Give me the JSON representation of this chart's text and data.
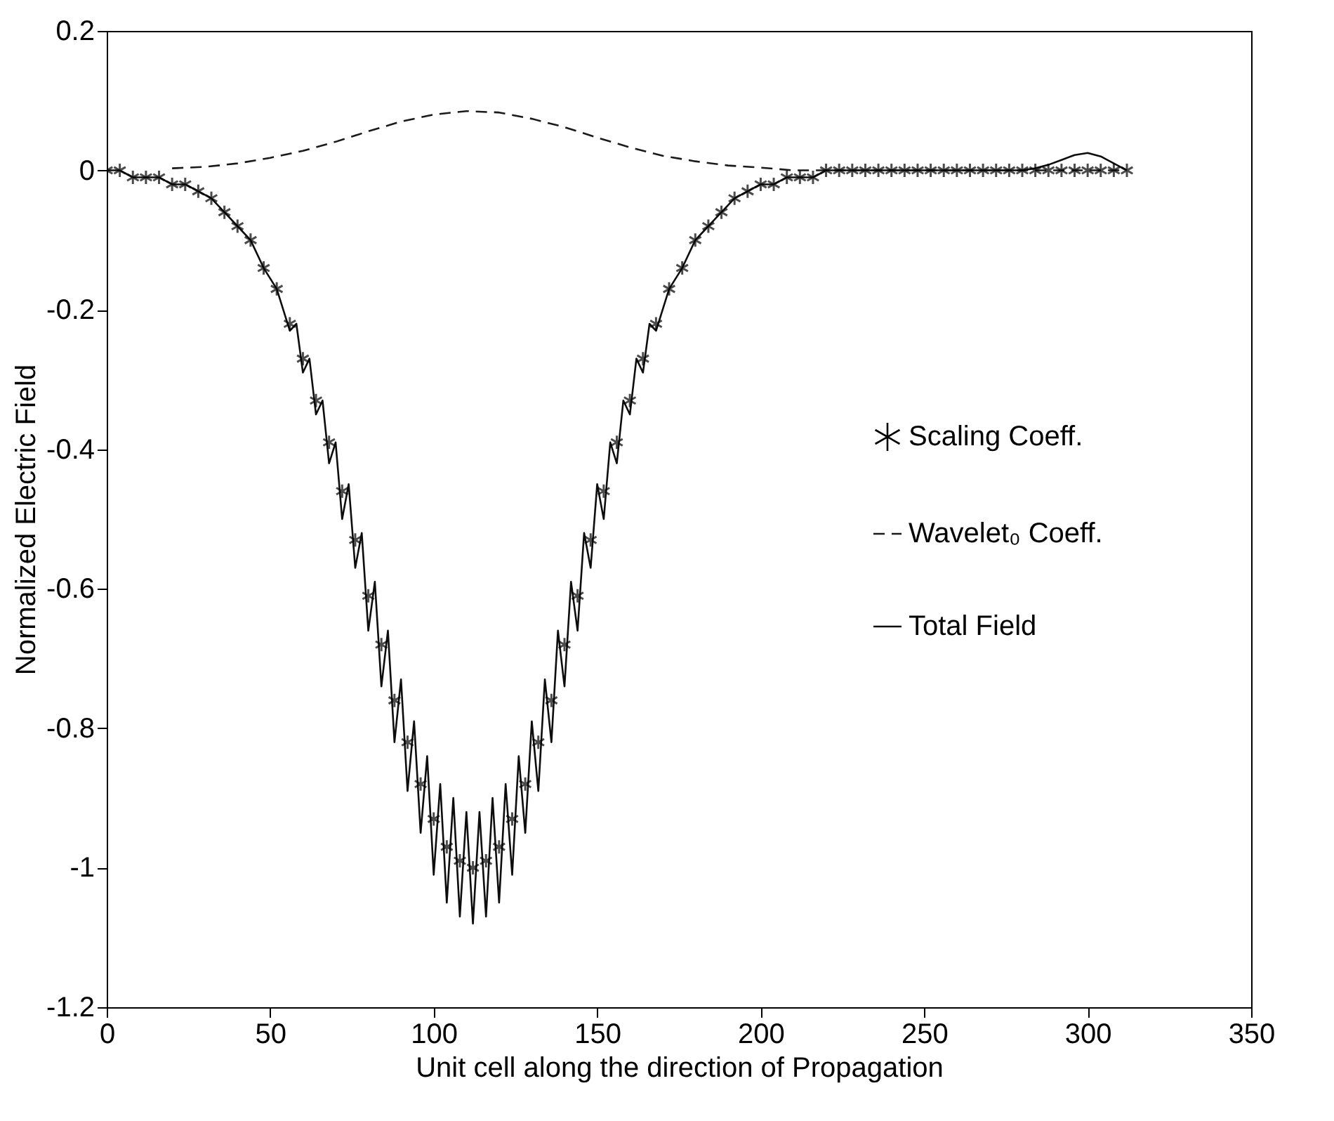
{
  "chart_data": {
    "type": "scatter",
    "xlabel": "Unit cell along the direction of Propagation",
    "ylabel": "Normalized Electric Field",
    "xlim": [
      0,
      350
    ],
    "ylim": [
      -1.2,
      0.2
    ],
    "xticks": [
      0,
      50,
      100,
      150,
      200,
      250,
      300,
      350
    ],
    "yticks": [
      -1.2,
      {
        "value": -1,
        "label": "-1"
      },
      -0.8,
      -0.6,
      -0.4,
      -0.2,
      {
        "value": 0,
        "label": "0"
      },
      0.2
    ],
    "grid": false,
    "legend": "right",
    "series": [
      {
        "name": "Scaling Coeff.",
        "marker": "cross",
        "color": "#000000",
        "x": [
          0,
          4,
          8,
          12,
          16,
          20,
          24,
          28,
          32,
          36,
          40,
          44,
          48,
          52,
          56,
          60,
          64,
          68,
          72,
          76,
          80,
          84,
          88,
          92,
          96,
          100,
          104,
          108,
          112,
          116,
          120,
          124,
          128,
          132,
          136,
          140,
          144,
          148,
          152,
          156,
          160,
          164,
          168,
          172,
          176,
          180,
          184,
          188,
          192,
          196,
          200,
          204,
          208,
          212,
          216,
          220,
          224,
          228,
          232,
          236,
          240,
          244,
          248,
          252,
          256,
          260,
          264,
          268,
          272,
          276,
          280,
          284,
          288,
          292,
          296,
          300,
          304,
          308,
          312
        ],
        "values": [
          0,
          0,
          -0.01,
          -0.01,
          -0.01,
          -0.02,
          -0.02,
          -0.03,
          -0.04,
          -0.06,
          -0.08,
          -0.1,
          -0.14,
          -0.17,
          -0.22,
          -0.27,
          -0.33,
          -0.39,
          -0.46,
          -0.53,
          -0.61,
          -0.68,
          -0.76,
          -0.82,
          -0.88,
          -0.93,
          -0.97,
          -0.99,
          -1,
          -0.99,
          -0.97,
          -0.93,
          -0.88,
          -0.82,
          -0.76,
          -0.68,
          -0.61,
          -0.53,
          -0.46,
          -0.39,
          -0.33,
          -0.27,
          -0.22,
          -0.17,
          -0.14,
          -0.1,
          -0.08,
          -0.06,
          -0.04,
          -0.03,
          -0.02,
          -0.02,
          -0.01,
          -0.01,
          -0.01,
          0,
          0,
          0,
          0,
          0,
          0,
          0,
          0,
          0,
          0,
          0,
          0,
          0,
          0,
          0,
          0,
          0,
          0,
          0,
          0,
          0,
          0,
          0,
          0
        ]
      },
      {
        "name": "Wavelet₀ Coeff.",
        "type": "line",
        "line_style": "dashed",
        "color": "#1a1a1a",
        "x": [
          20,
          30,
          40,
          50,
          60,
          70,
          80,
          90,
          100,
          110,
          120,
          130,
          140,
          150,
          160,
          170,
          180,
          190,
          200,
          210,
          220,
          230,
          240,
          250,
          260,
          270,
          280,
          290,
          300,
          310
        ],
        "values": [
          0.003,
          0.005,
          0.01,
          0.018,
          0.028,
          0.041,
          0.056,
          0.07,
          0.08,
          0.085,
          0.083,
          0.074,
          0.062,
          0.047,
          0.033,
          0.021,
          0.013,
          0.007,
          0.004,
          0,
          0,
          0,
          0,
          0,
          0,
          0,
          0,
          0,
          0,
          0
        ]
      },
      {
        "name": "Total Field",
        "type": "line",
        "line_style": "solid",
        "color": "#0d0d0d",
        "x": [
          0,
          4,
          8,
          12,
          16,
          20,
          24,
          28,
          32,
          36,
          40,
          44,
          48,
          52,
          56,
          58,
          60,
          62,
          64,
          66,
          68,
          70,
          72,
          74,
          76,
          78,
          80,
          82,
          84,
          86,
          88,
          90,
          92,
          94,
          96,
          98,
          100,
          102,
          104,
          106,
          108,
          110,
          112,
          114,
          116,
          118,
          120,
          122,
          124,
          126,
          128,
          130,
          132,
          134,
          136,
          138,
          140,
          142,
          144,
          146,
          148,
          150,
          152,
          154,
          156,
          158,
          160,
          162,
          164,
          166,
          168,
          172,
          176,
          180,
          184,
          188,
          192,
          196,
          200,
          204,
          208,
          212,
          216,
          220,
          224,
          228,
          232,
          236,
          240,
          244,
          248,
          252,
          256,
          260,
          264,
          268,
          272,
          276,
          280,
          284,
          288,
          292,
          296,
          300,
          304,
          308,
          312
        ],
        "values": [
          0,
          0,
          -0.01,
          -0.01,
          -0.01,
          -0.02,
          -0.02,
          -0.03,
          -0.04,
          -0.06,
          -0.08,
          -0.1,
          -0.14,
          -0.17,
          -0.23,
          -0.22,
          -0.29,
          -0.27,
          -0.35,
          -0.33,
          -0.42,
          -0.39,
          -0.5,
          -0.45,
          -0.57,
          -0.52,
          -0.66,
          -0.59,
          -0.74,
          -0.66,
          -0.82,
          -0.73,
          -0.89,
          -0.79,
          -0.95,
          -0.84,
          -1.01,
          -0.88,
          -1.05,
          -0.9,
          -1.07,
          -0.92,
          -1.08,
          -0.92,
          -1.07,
          -0.9,
          -1.05,
          -0.88,
          -1.01,
          -0.84,
          -0.95,
          -0.79,
          -0.89,
          -0.73,
          -0.82,
          -0.66,
          -0.74,
          -0.59,
          -0.66,
          -0.52,
          -0.57,
          -0.45,
          -0.5,
          -0.39,
          -0.42,
          -0.33,
          -0.35,
          -0.27,
          -0.29,
          -0.22,
          -0.23,
          -0.17,
          -0.14,
          -0.1,
          -0.08,
          -0.06,
          -0.04,
          -0.03,
          -0.02,
          -0.02,
          -0.01,
          -0.01,
          -0.01,
          0,
          0,
          0,
          0,
          0,
          0,
          0,
          0,
          0,
          0,
          0,
          0,
          0,
          0,
          0,
          0,
          0.003,
          0.008,
          0.015,
          0.022,
          0.025,
          0.02,
          0.01,
          0
        ]
      }
    ]
  }
}
